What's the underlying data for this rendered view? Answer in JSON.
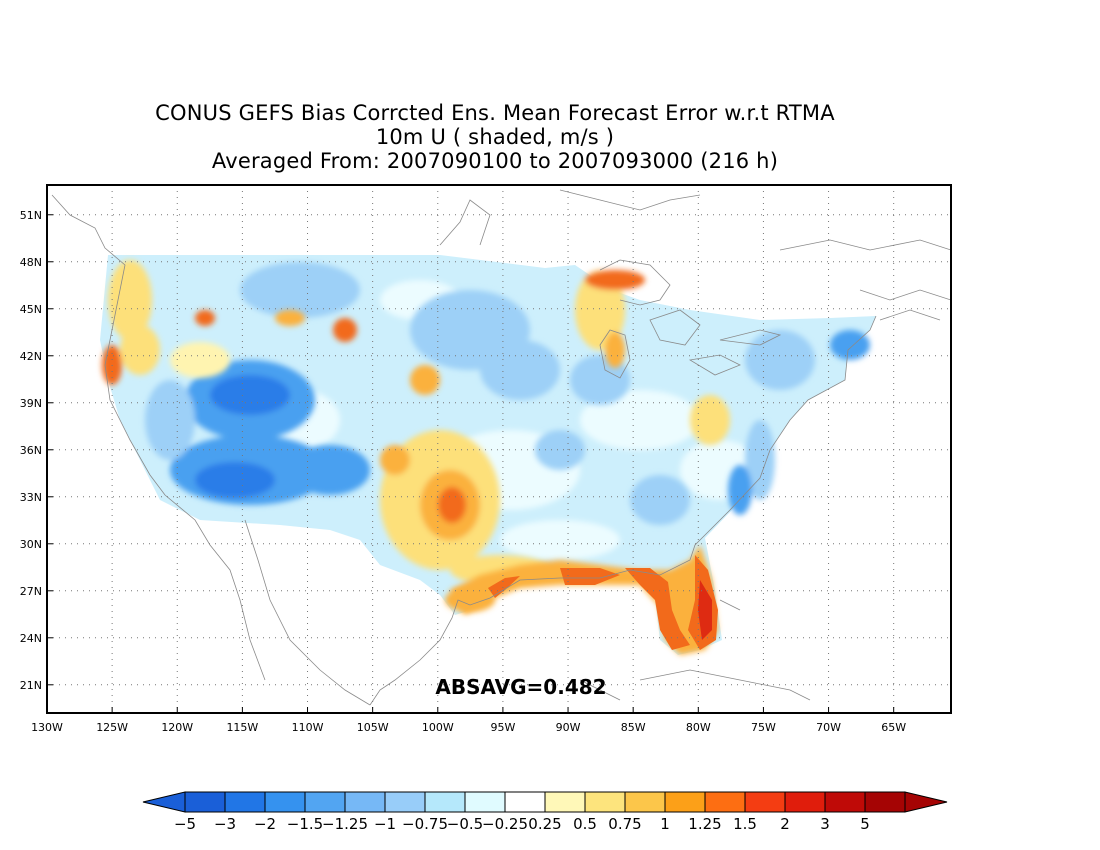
{
  "title": {
    "line1": "CONUS GEFS Bias Corrcted Ens. Mean Forecast Error w.r.t RTMA",
    "line2": "10m U ( shaded, m/s )",
    "line3": "Averaged From: 2007090100 to 2007093000 (216 h)"
  },
  "map": {
    "lat_labels": [
      "51N",
      "48N",
      "45N",
      "42N",
      "39N",
      "36N",
      "33N",
      "30N",
      "27N",
      "24N",
      "21N"
    ],
    "lat_values": [
      51,
      48,
      45,
      42,
      39,
      36,
      33,
      30,
      27,
      24,
      21
    ],
    "lon_labels": [
      "130W",
      "125W",
      "120W",
      "115W",
      "110W",
      "105W",
      "100W",
      "95W",
      "90W",
      "85W",
      "80W",
      "75W",
      "70W",
      "65W"
    ],
    "lon_values": [
      -130,
      -125,
      -120,
      -115,
      -110,
      -105,
      -100,
      -95,
      -90,
      -85,
      -80,
      -75,
      -70,
      -65
    ],
    "lat_range": [
      19.2,
      52.9
    ],
    "lon_range": [
      -130,
      -60.6
    ],
    "grid": "dotted",
    "annotation": "ABSAVG=0.482",
    "field_colors": {
      "neg_strong": "#2b7de8",
      "neg_med": "#4aa0f0",
      "neg_light": "#9dd0f7",
      "neg_faint": "#cdeffc",
      "near_zero": "#e8fbff",
      "pos_faint": "#fff4b0",
      "pos_light": "#fde07a",
      "pos_med": "#fbb13c",
      "pos_strong": "#f26a1b",
      "pos_max": "#de2b12"
    }
  },
  "colorbar": {
    "labels": [
      "−5",
      "−3",
      "−2",
      "−1.5",
      "−1.25",
      "−1",
      "−0.75",
      "−0.5",
      "−0.25",
      "0.25",
      "0.5",
      "0.75",
      "1",
      "1.25",
      "1.5",
      "2",
      "3",
      "5"
    ],
    "colors": [
      "#1a5fd8",
      "#2176e6",
      "#3592ef",
      "#52a5f2",
      "#76b8f6",
      "#98cdf9",
      "#b5e8fb",
      "#e0fbff",
      "#ffffff",
      "#fff8b8",
      "#fde47d",
      "#fcc64a",
      "#fca018",
      "#fd6e12",
      "#f43d12",
      "#e01d0c",
      "#bf0a07",
      "#a50404"
    ]
  }
}
